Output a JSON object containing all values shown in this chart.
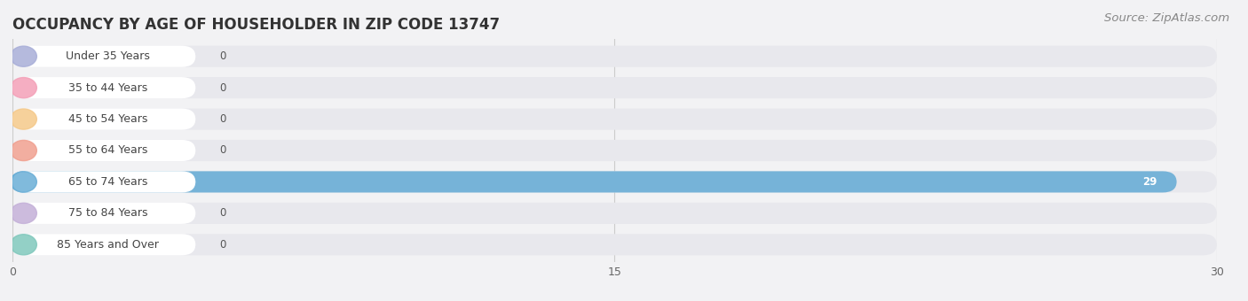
{
  "title": "OCCUPANCY BY AGE OF HOUSEHOLDER IN ZIP CODE 13747",
  "source": "Source: ZipAtlas.com",
  "categories": [
    "Under 35 Years",
    "35 to 44 Years",
    "45 to 54 Years",
    "55 to 64 Years",
    "65 to 74 Years",
    "75 to 84 Years",
    "85 Years and Over"
  ],
  "values": [
    0,
    0,
    0,
    0,
    29,
    0,
    0
  ],
  "bar_colors": [
    "#a8aed8",
    "#f4a0b8",
    "#f5c98a",
    "#f0a090",
    "#6aaed6",
    "#c4b0d8",
    "#80c8bc"
  ],
  "background_color": "#f2f2f4",
  "bar_background_color": "#e8e8ed",
  "xlim": [
    0,
    30
  ],
  "xticks": [
    0,
    15,
    30
  ],
  "title_fontsize": 12,
  "source_fontsize": 9.5,
  "label_fontsize": 9,
  "value_fontsize": 8.5,
  "bar_height": 0.68,
  "fig_width": 14.06,
  "fig_height": 3.4
}
